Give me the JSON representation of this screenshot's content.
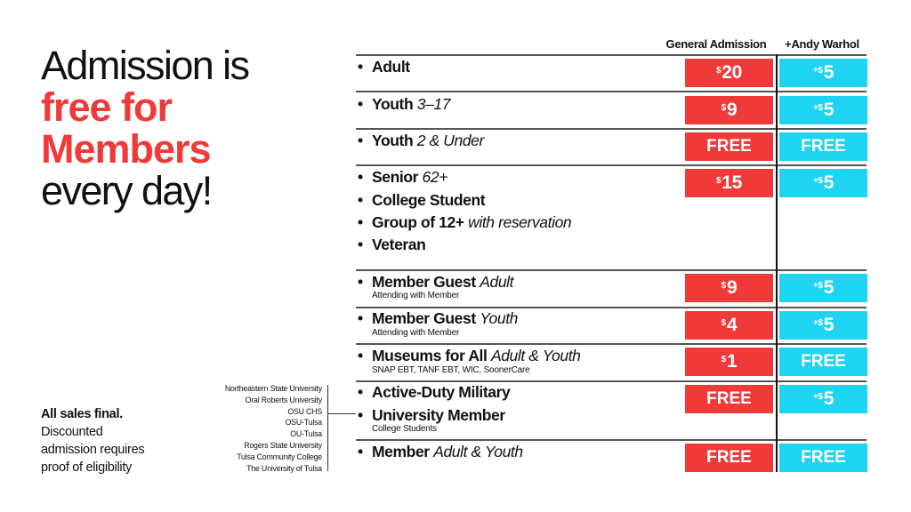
{
  "headline": {
    "line1": "Admission is",
    "line2": "free for",
    "line3": "Members",
    "line4": "every day!"
  },
  "note": {
    "bold": "All sales final.",
    "line1": "Discounted",
    "line2": "admission requires",
    "line3": "proof of eligibility"
  },
  "universities": [
    "Northeastern State University",
    "Oral Roberts University",
    "OSU CHS",
    "OSU-Tulsa",
    "OU-Tulsa",
    "Rogers State University",
    "Tulsa Community College",
    "The University of Tulsa"
  ],
  "columns": {
    "general": "General Admission",
    "warhol": "+Andy Warhol"
  },
  "bullet": "•",
  "rows": {
    "adult": {
      "label": "Adult",
      "ga_cur": "$",
      "ga_val": "20",
      "aw_plus": "+$",
      "aw_val": "5"
    },
    "youth": {
      "label": "Youth",
      "qual": "3–17",
      "ga_cur": "$",
      "ga_val": "9",
      "aw_plus": "+$",
      "aw_val": "5"
    },
    "youth2": {
      "label": "Youth",
      "qual": "2 & Under",
      "ga": "FREE",
      "aw": "FREE"
    },
    "group": {
      "senior": "Senior",
      "senior_qual": "62+",
      "college": "College Student",
      "grp": "Group of 12+",
      "grp_qual": "with reservation",
      "veteran": "Veteran",
      "ga_cur": "$",
      "ga_val": "15",
      "aw_plus": "+$",
      "aw_val": "5"
    },
    "mgadult": {
      "label": "Member Guest",
      "qual": "Adult",
      "sub": "Attending with Member",
      "ga_cur": "$",
      "ga_val": "9",
      "aw_plus": "+$",
      "aw_val": "5"
    },
    "mgyouth": {
      "label": "Member Guest",
      "qual": "Youth",
      "sub": "Attending with Member",
      "ga_cur": "$",
      "ga_val": "4",
      "aw_plus": "+$",
      "aw_val": "5"
    },
    "museums": {
      "label": "Museums for All",
      "qual": "Adult & Youth",
      "sub": "SNAP EBT, TANF EBT, WIC, SoonerCare",
      "ga_cur": "$",
      "ga_val": "1",
      "aw": "FREE"
    },
    "military": {
      "label1": "Active-Duty Military",
      "label2": "University Member",
      "sub": "College Students",
      "ga": "FREE",
      "aw_plus": "+$",
      "aw_val": "5"
    },
    "member": {
      "label": "Member",
      "qual": "Adult & Youth",
      "ga": "FREE",
      "aw": "FREE"
    }
  },
  "colors": {
    "red": "#f03a3a",
    "cyan": "#1fd3f2"
  }
}
